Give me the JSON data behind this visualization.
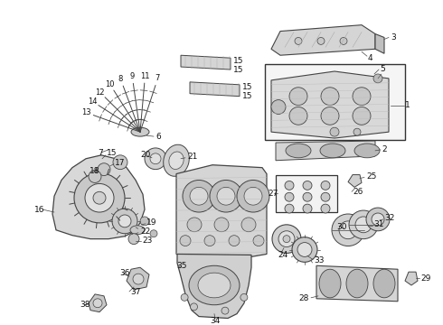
{
  "background_color": "#ffffff",
  "line_color": "#444444",
  "fill_light": "#e8e8e8",
  "fill_mid": "#d0d0d0",
  "fill_dark": "#b8b8b8",
  "label_color": "#111111"
}
